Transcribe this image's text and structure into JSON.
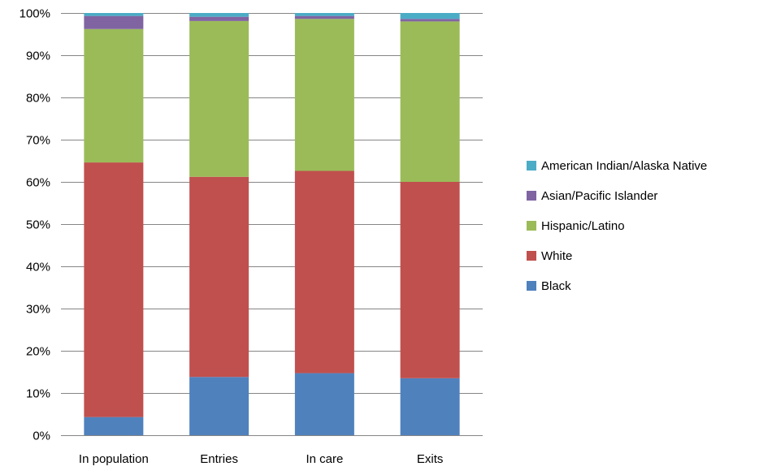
{
  "chart_data": {
    "type": "bar",
    "stacked": true,
    "categories": [
      "In population",
      "Entries",
      "In care",
      "Exits"
    ],
    "series": [
      {
        "name": "Black",
        "color": "#4F81BD",
        "values": [
          4.3,
          13.8,
          14.7,
          13.5
        ]
      },
      {
        "name": "White",
        "color": "#C0504D",
        "values": [
          60.3,
          47.4,
          47.9,
          46.5
        ]
      },
      {
        "name": "Hispanic/Latino",
        "color": "#9BBB59",
        "values": [
          31.6,
          36.9,
          36.0,
          38.0
        ]
      },
      {
        "name": "Asian/Pacific Islander",
        "color": "#8064A2",
        "values": [
          3.1,
          1.0,
          0.7,
          0.6
        ]
      },
      {
        "name": "American Indian/Alaska Native",
        "color": "#4BACC6",
        "values": [
          0.7,
          0.9,
          0.7,
          1.4
        ]
      }
    ],
    "yticks": [
      "0%",
      "10%",
      "20%",
      "30%",
      "40%",
      "50%",
      "60%",
      "70%",
      "80%",
      "90%",
      "100%"
    ],
    "ylim": [
      0,
      100
    ],
    "grid": true,
    "legend_position": "right",
    "legend_order": [
      "American Indian/Alaska Native",
      "Asian/Pacific Islander",
      "Hispanic/Latino",
      "White",
      "Black"
    ]
  }
}
